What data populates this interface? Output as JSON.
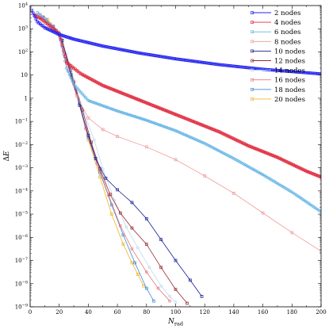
{
  "chart_data": {
    "type": "line",
    "xlabel": "N_rad",
    "ylabel": "ΔE",
    "xlim": [
      0,
      200
    ],
    "ylim_log10": [
      -9,
      4
    ],
    "y_scale": "log",
    "grid": false,
    "legend_placement": "top-right",
    "x_ticks": [
      "0",
      "20",
      "40",
      "60",
      "80",
      "100",
      "120",
      "140",
      "160",
      "180",
      "200"
    ],
    "y_ticks": [
      {
        "base": "10",
        "exp": "4"
      },
      {
        "base": "10",
        "exp": "3"
      },
      {
        "base": "10",
        "exp": "2"
      },
      {
        "base": "10",
        "exp": ""
      },
      {
        "base": "1",
        "exp": ""
      },
      {
        "base": "10",
        "exp": "−1"
      },
      {
        "base": "10",
        "exp": "−2"
      },
      {
        "base": "10",
        "exp": "−3"
      },
      {
        "base": "10",
        "exp": "−4"
      },
      {
        "base": "10",
        "exp": "−5"
      },
      {
        "base": "10",
        "exp": "−6"
      },
      {
        "base": "10",
        "exp": "−7"
      },
      {
        "base": "10",
        "exp": "−8"
      },
      {
        "base": "10",
        "exp": "−9"
      }
    ],
    "series": [
      {
        "name": "2 nodes",
        "color": "#2323f0",
        "marker": "square",
        "dense": true,
        "points": [
          [
            1,
            3.8
          ],
          [
            5,
            3.3
          ],
          [
            10,
            3.05
          ],
          [
            20,
            2.75
          ],
          [
            30,
            2.55
          ],
          [
            50,
            2.25
          ],
          [
            75,
            1.95
          ],
          [
            100,
            1.7
          ],
          [
            130,
            1.45
          ],
          [
            160,
            1.25
          ],
          [
            200,
            1.05
          ]
        ]
      },
      {
        "name": "4 nodes",
        "color": "#e0283c",
        "marker": "square",
        "dense": true,
        "points": [
          [
            3,
            3.6
          ],
          [
            8,
            3.4
          ],
          [
            14,
            3.1
          ],
          [
            20,
            2.8
          ],
          [
            25,
            1.55
          ],
          [
            35,
            1.05
          ],
          [
            50,
            0.55
          ],
          [
            70,
            0.05
          ],
          [
            90,
            -0.45
          ],
          [
            110,
            -0.95
          ],
          [
            130,
            -1.45
          ],
          [
            150,
            -2.05
          ],
          [
            170,
            -2.55
          ],
          [
            190,
            -3.15
          ],
          [
            200,
            -3.4
          ]
        ]
      },
      {
        "name": "6 nodes",
        "color": "#64b4e6",
        "marker": "circle",
        "dense": true,
        "points": [
          [
            5,
            3.7
          ],
          [
            10,
            3.4
          ],
          [
            15,
            3.1
          ],
          [
            20,
            2.8
          ],
          [
            25,
            1.3
          ],
          [
            30,
            0.6
          ],
          [
            40,
            -0.1
          ],
          [
            60,
            -0.55
          ],
          [
            80,
            -0.95
          ],
          [
            100,
            -1.4
          ],
          [
            120,
            -1.95
          ],
          [
            140,
            -2.6
          ],
          [
            160,
            -3.3
          ],
          [
            180,
            -4.05
          ],
          [
            200,
            -4.9
          ]
        ]
      },
      {
        "name": "8 nodes",
        "color": "#f09a9a",
        "marker": "square",
        "dense": false,
        "points": [
          [
            7,
            3.6
          ],
          [
            14,
            3.2
          ],
          [
            20,
            2.75
          ],
          [
            26,
            1.2
          ],
          [
            32,
            0.1
          ],
          [
            40,
            -0.85
          ],
          [
            50,
            -1.35
          ],
          [
            60,
            -1.65
          ],
          [
            80,
            -2.1
          ],
          [
            100,
            -2.65
          ],
          [
            120,
            -3.35
          ],
          [
            140,
            -4.1
          ],
          [
            160,
            -4.95
          ],
          [
            180,
            -5.8
          ],
          [
            200,
            -6.6
          ]
        ]
      },
      {
        "name": "10 nodes",
        "color": "#141e96",
        "marker": "square",
        "dense": false,
        "points": [
          [
            8,
            3.5
          ],
          [
            15,
            3.1
          ],
          [
            22,
            2.5
          ],
          [
            28,
            1.0
          ],
          [
            34,
            -0.3
          ],
          [
            40,
            -1.6
          ],
          [
            45,
            -2.6
          ],
          [
            52,
            -3.45
          ],
          [
            60,
            -3.95
          ],
          [
            70,
            -4.5
          ],
          [
            80,
            -5.2
          ],
          [
            90,
            -6.1
          ],
          [
            100,
            -7.0
          ],
          [
            110,
            -7.85
          ],
          [
            118,
            -8.55
          ]
        ]
      },
      {
        "name": "12 nodes",
        "color": "#962832",
        "marker": "square",
        "dense": false,
        "points": [
          [
            9,
            3.5
          ],
          [
            16,
            3.1
          ],
          [
            22,
            2.5
          ],
          [
            30,
            0.7
          ],
          [
            36,
            -0.5
          ],
          [
            42,
            -1.9
          ],
          [
            48,
            -3.05
          ],
          [
            55,
            -4.15
          ],
          [
            62,
            -4.95
          ],
          [
            70,
            -5.6
          ],
          [
            80,
            -6.3
          ],
          [
            90,
            -7.3
          ],
          [
            100,
            -8.25
          ],
          [
            108,
            -8.85
          ]
        ]
      },
      {
        "name": "14 nodes",
        "color": "#bcdcf0",
        "marker": "circle",
        "dense": false,
        "points": [
          [
            10,
            3.45
          ],
          [
            18,
            2.95
          ],
          [
            25,
            1.9
          ],
          [
            30,
            0.8
          ],
          [
            36,
            -0.45
          ],
          [
            44,
            -1.8
          ],
          [
            50,
            -3.05
          ],
          [
            58,
            -4.4
          ],
          [
            66,
            -5.55
          ],
          [
            74,
            -6.45
          ],
          [
            82,
            -7.3
          ],
          [
            90,
            -8.1
          ],
          [
            96,
            -8.55
          ],
          [
            100,
            -8.8
          ]
        ]
      },
      {
        "name": "16 nodes",
        "color": "#e8787c",
        "marker": "circle",
        "dense": false,
        "points": [
          [
            10,
            3.45
          ],
          [
            18,
            2.95
          ],
          [
            25,
            1.6
          ],
          [
            32,
            0.2
          ],
          [
            38,
            -1.3
          ],
          [
            46,
            -2.8
          ],
          [
            54,
            -4.2
          ],
          [
            62,
            -5.5
          ],
          [
            70,
            -6.5
          ],
          [
            80,
            -7.5
          ],
          [
            88,
            -8.2
          ],
          [
            96,
            -8.75
          ]
        ]
      },
      {
        "name": "18 nodes",
        "color": "#3c8cd2",
        "marker": "square",
        "dense": false,
        "points": [
          [
            11,
            3.4
          ],
          [
            20,
            2.8
          ],
          [
            28,
            1.3
          ],
          [
            34,
            -0.2
          ],
          [
            40,
            -1.7
          ],
          [
            48,
            -3.2
          ],
          [
            56,
            -4.6
          ],
          [
            64,
            -5.9
          ],
          [
            72,
            -7.1
          ],
          [
            80,
            -8.2
          ],
          [
            85,
            -8.75
          ]
        ]
      },
      {
        "name": "20 nodes",
        "color": "#f0b428",
        "marker": "square",
        "dense": false,
        "points": [
          [
            12,
            3.4
          ],
          [
            20,
            2.8
          ],
          [
            28,
            1.2
          ],
          [
            34,
            -0.3
          ],
          [
            40,
            -1.8
          ],
          [
            48,
            -3.4
          ],
          [
            56,
            -5.0
          ],
          [
            64,
            -6.3
          ],
          [
            70,
            -7.1
          ],
          [
            74,
            -7.6
          ],
          [
            78,
            -8.1
          ]
        ]
      }
    ]
  }
}
